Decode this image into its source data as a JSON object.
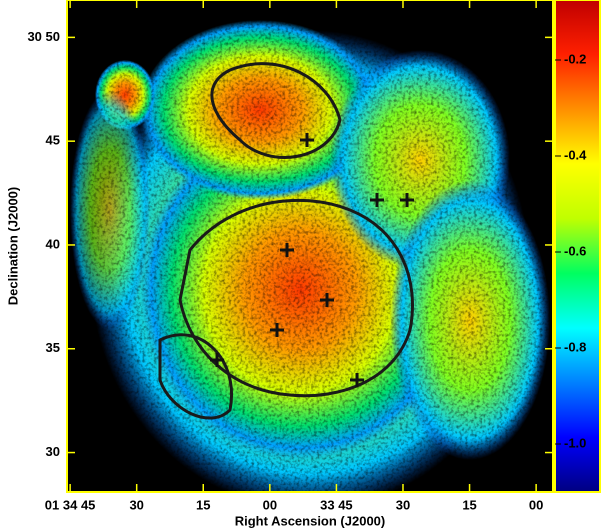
{
  "chart_data": {
    "type": "image",
    "xlabel": "Right Ascension (J2000)",
    "ylabel": "Declination (J2000)",
    "xlim": [
      5685.7,
      5576.2
    ],
    "xticks": [
      {
        "value": 5685,
        "label": "01 34 45"
      },
      {
        "value": 5670,
        "label": "30"
      },
      {
        "value": 5655,
        "label": "15"
      },
      {
        "value": 5640,
        "label": "00"
      },
      {
        "value": 5625,
        "label": "33 45"
      },
      {
        "value": 5610,
        "label": "30"
      },
      {
        "value": 5595,
        "label": "15"
      },
      {
        "value": 5580,
        "label": "00"
      }
    ],
    "ylim": [
      28.1,
      51.8
    ],
    "yticks": [
      {
        "value": 50,
        "label": "30 50"
      },
      45,
      40,
      35,
      30
    ],
    "frame_color": "#ffff00",
    "colorbar": {
      "lim": [
        -1.1,
        -0.075
      ],
      "ticks": [
        -0.2,
        -0.4,
        -0.6,
        -0.8,
        {
          "value": -1,
          "label": "-1.0"
        }
      ],
      "colors": [
        "#000080",
        "#0000ff",
        "#0080ff",
        "#00ffff",
        "#00ff60",
        "#c0ff00",
        "#ffff00",
        "#ff9000",
        "#ff2000",
        "#c00000"
      ]
    }
  }
}
